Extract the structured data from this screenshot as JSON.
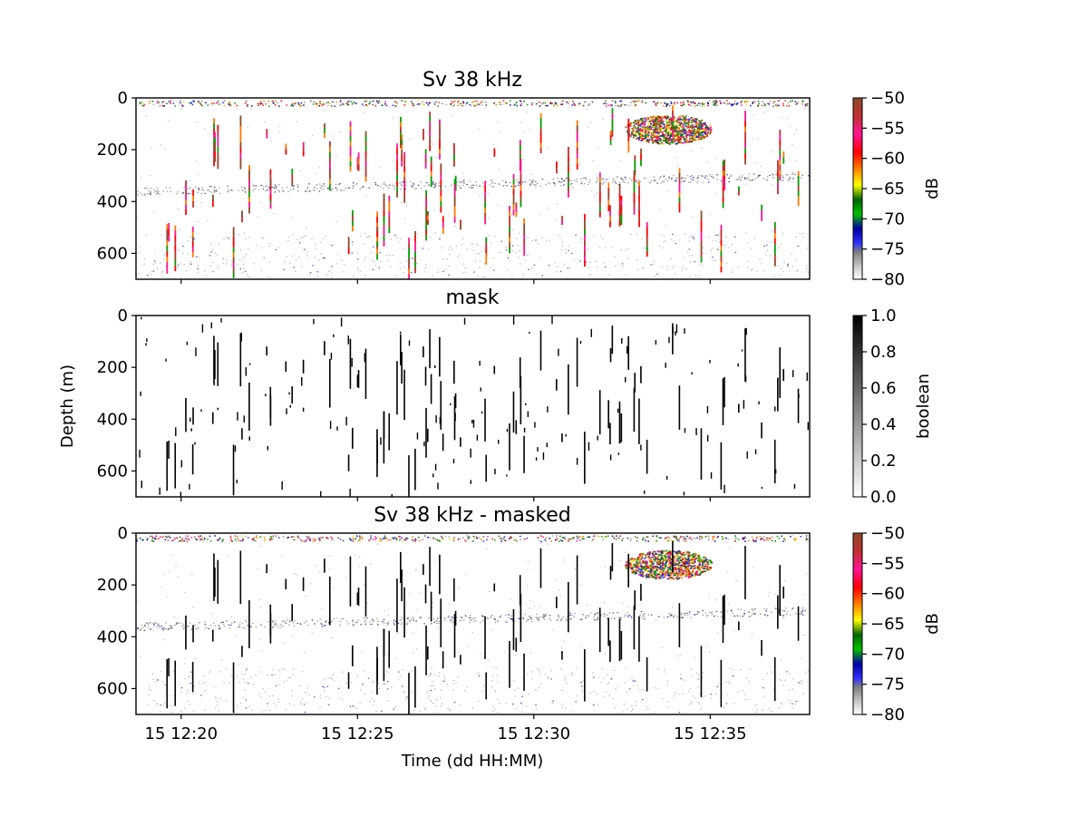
{
  "figure": {
    "xlabel": "Time (dd HH:MM)"
  },
  "chart_data": [
    {
      "type": "heatmap",
      "title": "Sv 38 kHz",
      "xlabel": "",
      "ylabel": "",
      "x_ticks": [
        "15 12:20",
        "15 12:25",
        "15 12:30",
        "15 12:35"
      ],
      "xlim_minutes": [
        18.72,
        37.82
      ],
      "x_tick_minutes": [
        20,
        25,
        30,
        35
      ],
      "y_ticks": [
        0,
        200,
        400,
        600
      ],
      "ylim": [
        700,
        0
      ],
      "colorbar": {
        "label": "dB",
        "ticks": [
          -50,
          -55,
          -60,
          -65,
          -70,
          -75,
          -80
        ],
        "range": [
          -80,
          -50
        ],
        "colormap": [
          "#ffffff",
          "#bfbfbf",
          "#808080",
          "#0000ff",
          "#007f00",
          "#ffff00",
          "#ff7f00",
          "#ff0000",
          "#ff00ff",
          "#a0522d"
        ]
      },
      "features": {
        "school_depth_m": 120,
        "school_time_min": 33.8,
        "scattering_layer_depth_m": [
          360,
          300
        ],
        "surface_band_depth_m": 20
      }
    },
    {
      "type": "heatmap",
      "title": "mask",
      "xlabel": "",
      "ylabel": "Depth (m)",
      "x_ticks": [
        "15 12:20",
        "15 12:25",
        "15 12:30",
        "15 12:35"
      ],
      "xlim_minutes": [
        18.72,
        37.82
      ],
      "x_tick_minutes": [
        20,
        25,
        30,
        35
      ],
      "y_ticks": [
        0,
        200,
        400,
        600
      ],
      "ylim": [
        700,
        0
      ],
      "colorbar": {
        "label": "boolean",
        "ticks": [
          "1.0",
          "0.8",
          "0.6",
          "0.4",
          "0.2",
          "0.0"
        ],
        "range": [
          0,
          1
        ],
        "colormap": [
          "#ffffff",
          "#000000"
        ]
      }
    },
    {
      "type": "heatmap",
      "title": "Sv 38 kHz - masked",
      "xlabel": "Time (dd HH:MM)",
      "ylabel": "",
      "x_ticks": [
        "15 12:20",
        "15 12:25",
        "15 12:30",
        "15 12:35"
      ],
      "xlim_minutes": [
        18.72,
        37.82
      ],
      "x_tick_minutes": [
        20,
        25,
        30,
        35
      ],
      "y_ticks": [
        0,
        200,
        400,
        600
      ],
      "ylim": [
        700,
        0
      ],
      "colorbar": {
        "label": "dB",
        "ticks": [
          -50,
          -55,
          -60,
          -65,
          -70,
          -75,
          -80
        ],
        "range": [
          -80,
          -50
        ],
        "colormap": [
          "#ffffff",
          "#bfbfbf",
          "#808080",
          "#0000ff",
          "#007f00",
          "#ffff00",
          "#ff7f00",
          "#ff0000",
          "#ff00ff",
          "#a0522d"
        ]
      }
    }
  ]
}
